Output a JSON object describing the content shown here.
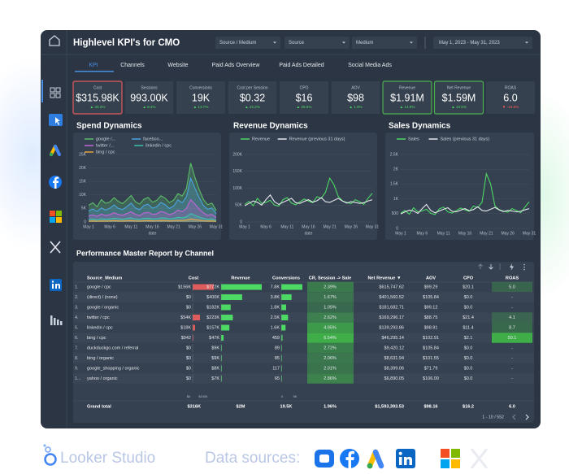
{
  "header": {
    "title": "Highlevel KPI's for CMO",
    "filters": [
      "Source / Medium",
      "Source",
      "Medium"
    ],
    "date_range": "May 1, 2023 - May 31, 2023"
  },
  "tabs": [
    "KPI",
    "Channels",
    "Website",
    "Paid Ads Overview",
    "Paid Ads Detailed",
    "Social Media Ads"
  ],
  "kpis": [
    {
      "label": "Cost",
      "value": "$315.98K",
      "change": "▲ 40.2%",
      "border": "#e05c5c"
    },
    {
      "label": "Sessions",
      "value": "993.00K",
      "change": "▲ 8.4%"
    },
    {
      "label": "Conversions",
      "value": "19K",
      "change": "▲ 13.7%"
    },
    {
      "label": "Cost per Session",
      "value": "$0.32",
      "change": "▲ 22.2%"
    },
    {
      "label": "CPO",
      "value": "$16",
      "change": "▲ 26.6%"
    },
    {
      "label": "AOV",
      "value": "$98",
      "change": "▲ 1.0%"
    },
    {
      "label": "Revenue",
      "value": "$1.91M",
      "change": "▲ 14.9%",
      "border": "#4caf50"
    },
    {
      "label": "Net Revenue",
      "value": "$1.59M",
      "change": "▲ 10.5%",
      "border": "#4caf50"
    },
    {
      "label": "ROAS",
      "value": "6.0",
      "change": "▼ -19.8%"
    }
  ],
  "chart_data": [
    {
      "type": "line",
      "title": "Spend Dynamics",
      "x_label": "date",
      "area": true,
      "grid": true,
      "categories": [
        "May 1",
        null,
        null,
        null,
        null,
        "May 6",
        null,
        null,
        null,
        null,
        "May 11",
        null,
        null,
        null,
        null,
        "May 16",
        null,
        null,
        null,
        null,
        "May 21",
        null,
        null,
        null,
        null,
        "May 26",
        null,
        null,
        null,
        null,
        "May 31"
      ],
      "ylim": [
        0,
        25000
      ],
      "yticks": [
        0,
        {
          "value": 5000,
          "label": "5K"
        },
        {
          "value": 10000,
          "label": "10K"
        },
        {
          "value": 15000,
          "label": "15K"
        },
        {
          "value": 20000,
          "label": "20K"
        },
        {
          "value": 25000,
          "label": "25K"
        }
      ],
      "series": [
        {
          "name": "google /...",
          "color": "#5cbf6a",
          "values": [
            6200,
            7100,
            5600,
            8300,
            6900,
            7400,
            9000,
            7600,
            6800,
            8200,
            9800,
            7500,
            6600,
            8400,
            9100,
            7300,
            8000,
            9700,
            8800,
            7200,
            8100,
            10500,
            9600,
            12400,
            21800,
            16500,
            12000,
            8300,
            6400,
            7000,
            4200
          ]
        },
        {
          "name": "faceboo...",
          "color": "#4aa3df",
          "values": [
            4100,
            4800,
            3900,
            5200,
            4400,
            5100,
            6300,
            5000,
            4600,
            5700,
            7000,
            5200,
            4500,
            6100,
            6600,
            5100,
            5600,
            7200,
            6400,
            5000,
            5900,
            8200,
            7100,
            9300,
            16200,
            12500,
            9000,
            6100,
            4700,
            5200,
            3000
          ]
        },
        {
          "name": "twitter /...",
          "color": "#c065d9",
          "values": [
            2200,
            2600,
            2100,
            2900,
            2400,
            2700,
            3400,
            2800,
            2500,
            3100,
            3800,
            2800,
            2400,
            3300,
            3600,
            2800,
            3000,
            3900,
            3500,
            2700,
            3200,
            4400,
            3800,
            5000,
            8300,
            6600,
            4800,
            3300,
            2500,
            2800,
            1600
          ]
        },
        {
          "name": "linkedin / cpc",
          "color": "#3ac4a8",
          "values": [
            900,
            1100,
            800,
            1200,
            1000,
            1100,
            1400,
            1200,
            1000,
            1300,
            1500,
            1100,
            1000,
            1300,
            1400,
            1100,
            1200,
            1500,
            1400,
            1100,
            1300,
            1700,
            1500,
            1900,
            3100,
            2500,
            1800,
            1300,
            1000,
            1100,
            600
          ]
        },
        {
          "name": "bing / cpc",
          "color": "#e8a33d",
          "values": [
            300,
            400,
            300,
            400,
            350,
            400,
            500,
            400,
            350,
            450,
            500,
            400,
            350,
            450,
            500,
            400,
            450,
            550,
            500,
            400,
            450,
            600,
            550,
            700,
            1100,
            900,
            650,
            450,
            350,
            400,
            250
          ]
        }
      ]
    },
    {
      "type": "line",
      "title": "Revenue Dynamics",
      "x_label": "date",
      "grid": true,
      "categories": [
        "May 1",
        null,
        null,
        null,
        null,
        "May 6",
        null,
        null,
        null,
        null,
        "May 11",
        null,
        null,
        null,
        null,
        "May 16",
        null,
        null,
        null,
        null,
        "May 21",
        null,
        null,
        null,
        null,
        "May 26",
        null,
        null,
        null,
        null,
        "May 31"
      ],
      "ylim": [
        0,
        200000
      ],
      "yticks": [
        0,
        {
          "value": 50000,
          "label": "50K"
        },
        {
          "value": 100000,
          "label": "100K"
        },
        {
          "value": 150000,
          "label": "150K"
        },
        {
          "value": 200000,
          "label": "200K"
        }
      ],
      "series": [
        {
          "name": "Revenue",
          "color": "#4cd964",
          "values": [
            52000,
            61000,
            48000,
            70000,
            55000,
            58000,
            64000,
            50000,
            47000,
            66000,
            72000,
            56000,
            51000,
            60000,
            68000,
            62000,
            57000,
            75000,
            70000,
            88000,
            130000,
            110000,
            76000,
            62000,
            58000,
            54000,
            66000,
            60000,
            52000,
            70000,
            85000
          ]
        },
        {
          "name": "Revenue (previous 31 days)",
          "color": "#e6e9ee",
          "values": [
            48000,
            55000,
            62000,
            58000,
            50000,
            66000,
            80000,
            60000,
            52000,
            58000,
            64000,
            70000,
            57000,
            55000,
            61000,
            66000,
            59000,
            63000,
            72000,
            60000,
            58000,
            64000,
            70000,
            62000,
            56000,
            60000,
            58000,
            55000,
            57000,
            62000,
            66000
          ]
        }
      ]
    },
    {
      "type": "line",
      "title": "Sales Dynamics",
      "grid": true,
      "categories": [
        "May 1",
        null,
        null,
        null,
        null,
        "May 6",
        null,
        null,
        null,
        null,
        "May 11",
        null,
        null,
        null,
        null,
        "May 16",
        null,
        null,
        null,
        null,
        "May 21",
        null,
        null,
        null,
        null,
        "May 26",
        null,
        null,
        null,
        null,
        "May 31"
      ],
      "ylim": [
        0,
        2500
      ],
      "yticks": [
        0,
        500,
        {
          "value": 1000,
          "label": "1K"
        },
        {
          "value": 1500,
          "label": "1.5K"
        },
        {
          "value": 2000,
          "label": "2K"
        },
        {
          "value": 2500,
          "label": "2.5K"
        }
      ],
      "series": [
        {
          "name": "Sales",
          "color": "#4cd964",
          "values": [
            520,
            610,
            480,
            700,
            560,
            590,
            650,
            510,
            470,
            660,
            720,
            560,
            520,
            610,
            690,
            630,
            580,
            760,
            710,
            890,
            1850,
            1500,
            760,
            630,
            590,
            550,
            670,
            610,
            530,
            720,
            900
          ]
        },
        {
          "name": "Sales (previous 31 days)",
          "color": "#e6e9ee",
          "values": [
            490,
            560,
            620,
            590,
            510,
            670,
            810,
            610,
            530,
            590,
            650,
            700,
            580,
            560,
            620,
            670,
            600,
            640,
            730,
            610,
            590,
            650,
            710,
            630,
            570,
            610,
            590,
            560,
            580,
            630,
            670
          ]
        }
      ]
    }
  ],
  "table": {
    "title": "Performance Master Report by Channel",
    "columns": [
      "Source_Medium",
      "Cost",
      "Revenue",
      "Conversions",
      "CR, Session -> Sale",
      "Net Revenue ▼",
      "AOV",
      "CPO",
      "ROAS"
    ],
    "rows": [
      [
        "1.",
        "google / cpc",
        "$156K",
        "$772K",
        "7.8K",
        "2.39%",
        "$615,747.62",
        "$99.29",
        "$20.1",
        "5.0"
      ],
      [
        "2.",
        "(direct) / (none)",
        "$0",
        "$400K",
        "3.8K",
        "1.67%",
        "$401,560.52",
        "$105.84",
        "$0.0",
        "-"
      ],
      [
        "3.",
        "google / organic",
        "$0",
        "$182K",
        "1.8K",
        "1.05%",
        "$181,682.71",
        "$99.12",
        "$0.0",
        "-"
      ],
      [
        "4.",
        "twitter / cpc",
        "$54K",
        "$223K",
        "2.5K",
        "2.62%",
        "$169,296.17",
        "$88.75",
        "$21.4",
        "4.1"
      ],
      [
        "5.",
        "linkedin / cpc",
        "$18K",
        "$157K",
        "1.6K",
        "4.95%",
        "$139,293.86",
        "$98.91",
        "$11.4",
        "8.7"
      ],
      [
        "6.",
        "bing / cpc",
        "$942",
        "$47K",
        "459",
        "6.54%",
        "$46,295.14",
        "$102.91",
        "$2.1",
        "50.1"
      ],
      [
        "7.",
        "duckduckgo.com / referral",
        "$0",
        "$9K",
        "89",
        "2.72%",
        "$9,420.12",
        "$105.84",
        "$0.0",
        "-"
      ],
      [
        "8.",
        "bing / organic",
        "$0",
        "$9K",
        "85",
        "2.06%",
        "$8,631.94",
        "$101.55",
        "$0.0",
        "-"
      ],
      [
        "9.",
        "google_shopping / organic",
        "$0",
        "$8K",
        "117",
        "2.01%",
        "$8,399.06",
        "$71.79",
        "$0.0",
        "-"
      ],
      [
        "1...",
        "yahoo / organic",
        "$0",
        "$7K",
        "65",
        "2.86%",
        "$6,890.05",
        "$106.00",
        "$0.0",
        "-"
      ]
    ],
    "bar_axes": {
      "cost": [
        "$0",
        "$100K"
      ],
      "conversions": [
        "0",
        "5K"
      ]
    },
    "total": [
      "Grand total",
      "$316K",
      "$2M",
      "19.5K",
      "1.96%",
      "$1,593,393.53",
      "$98.16",
      "$16.2",
      "6.0"
    ],
    "pagination": "1 - 10 / 552"
  },
  "footer": {
    "brand": "Looker Studio",
    "sources_label": "Data sources:"
  }
}
